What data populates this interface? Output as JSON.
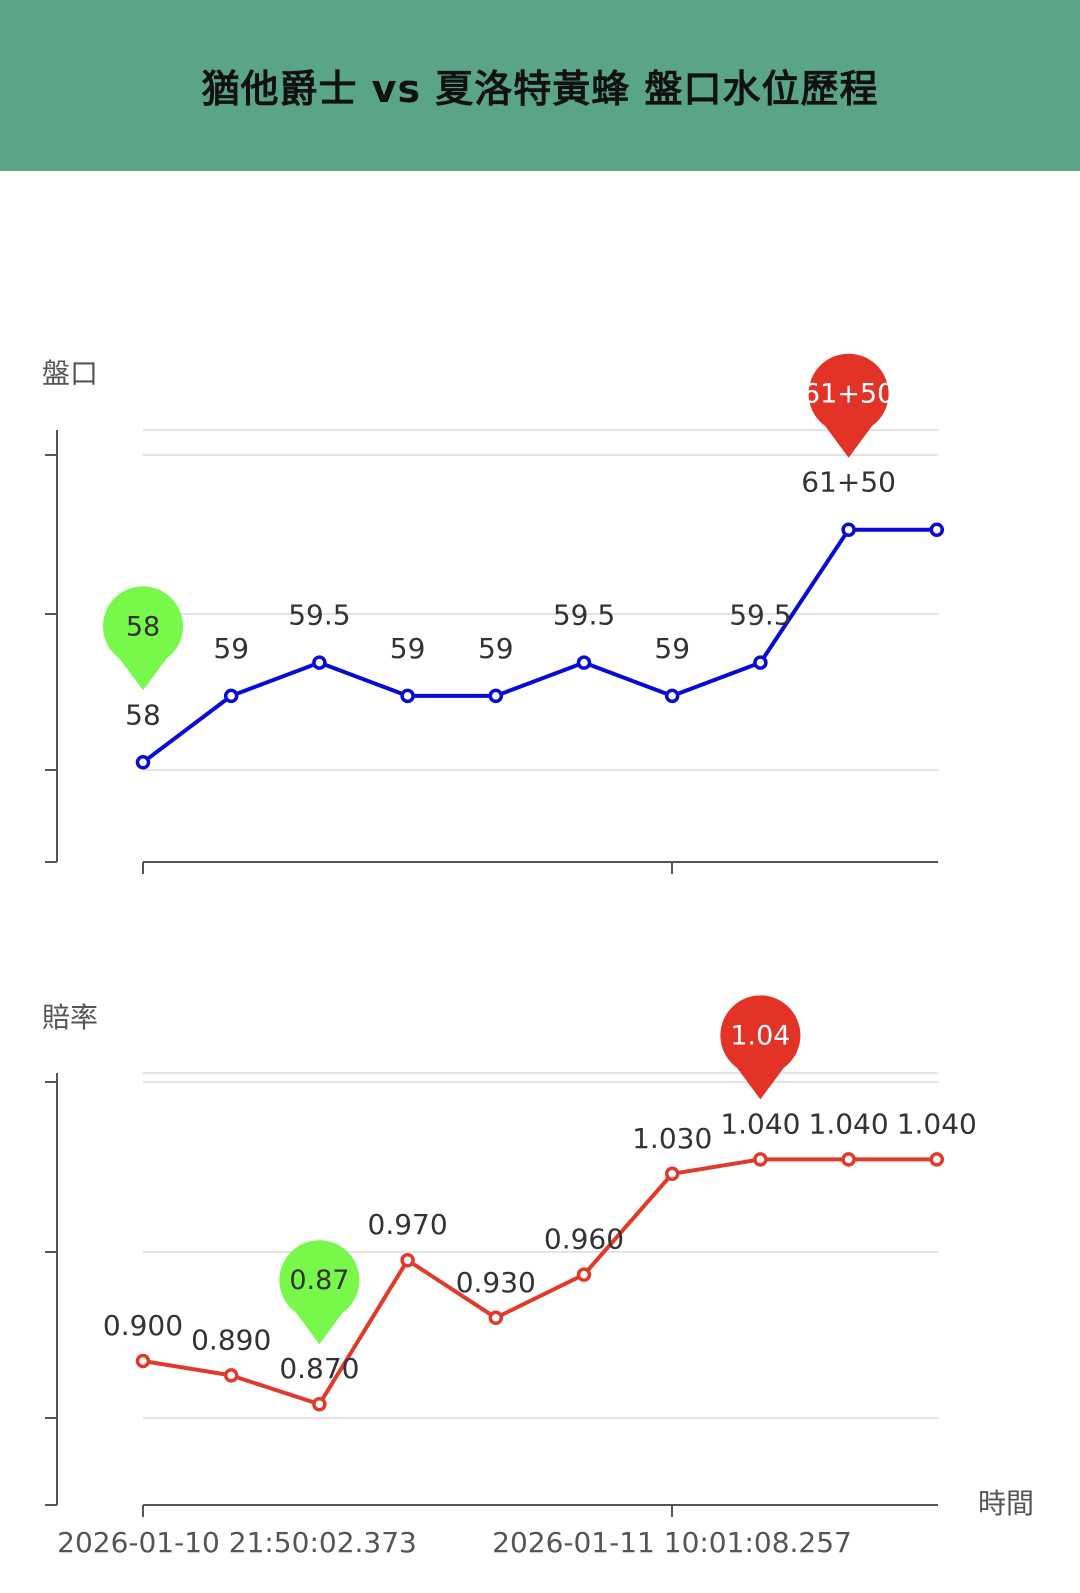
{
  "header": {
    "title": "猶他爵士 vs 夏洛特黃蜂 盤口水位歷程"
  },
  "colors": {
    "header_bg": "#5aa588",
    "line_handicap": "#0a0ad6",
    "line_odds": "#e23a2a",
    "pin_max": "#e33327",
    "pin_min": "#77f84b"
  },
  "chart_data": [
    {
      "type": "line",
      "ylabel": "盤口",
      "series": [
        {
          "values": [
            58,
            59,
            59.5,
            59,
            59,
            59.5,
            59,
            59.5,
            61.5,
            61.5
          ],
          "labels": [
            "58",
            "59",
            "59.5",
            "59",
            "59",
            "59.5",
            "59",
            "59.5",
            "61+50",
            ""
          ]
        }
      ],
      "markers": {
        "min": {
          "index": 0,
          "label": "58"
        },
        "max": {
          "index": 8,
          "label": "61+50"
        }
      },
      "ylim": [
        56.5,
        63
      ],
      "grid": true
    },
    {
      "type": "line",
      "ylabel": "賠率",
      "xlabel": "時間",
      "x_tick_labels": [
        "2026-01-10 21:50:02.373",
        "2026-01-11 10:01:08.257"
      ],
      "series": [
        {
          "values": [
            0.9,
            0.89,
            0.87,
            0.97,
            0.93,
            0.96,
            1.03,
            1.04,
            1.04,
            1.04
          ],
          "labels": [
            "0.900",
            "0.890",
            "0.870",
            "0.970",
            "0.930",
            "0.960",
            "1.030",
            "1.040",
            "1.040",
            "1.040"
          ]
        }
      ],
      "markers": {
        "min": {
          "index": 2,
          "label": "0.87"
        },
        "max": {
          "index": 7,
          "label": "1.04"
        }
      },
      "ylim": [
        0.8,
        1.1
      ],
      "grid": true
    }
  ]
}
